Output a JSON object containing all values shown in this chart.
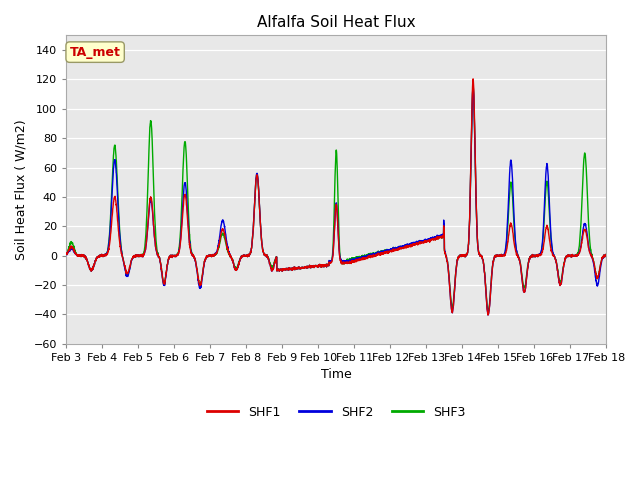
{
  "title": "Alfalfa Soil Heat Flux",
  "xlabel": "Time",
  "ylabel": "Soil Heat Flux ( W/m2)",
  "ylim": [
    -60,
    150
  ],
  "yticks": [
    -60,
    -40,
    -20,
    0,
    20,
    40,
    60,
    80,
    100,
    120,
    140
  ],
  "bg_color": "#e8e8e8",
  "line_colors": {
    "SHF1": "#dd0000",
    "SHF2": "#0000dd",
    "SHF3": "#00aa00"
  },
  "line_width": 1.0,
  "annotation_text": "TA_met",
  "annotation_color": "#cc0000",
  "annotation_bg": "#ffffcc",
  "x_tick_labels": [
    "Feb 3",
    "Feb 4",
    "Feb 5",
    "Feb 6",
    "Feb 7",
    "Feb 8",
    "Feb 9",
    "Feb 10",
    "Feb 11",
    "Feb 12",
    "Feb 13",
    "Feb 14",
    "Feb 15",
    "Feb 16",
    "Feb 17",
    "Feb 18"
  ],
  "figsize": [
    6.4,
    4.8
  ],
  "dpi": 100
}
